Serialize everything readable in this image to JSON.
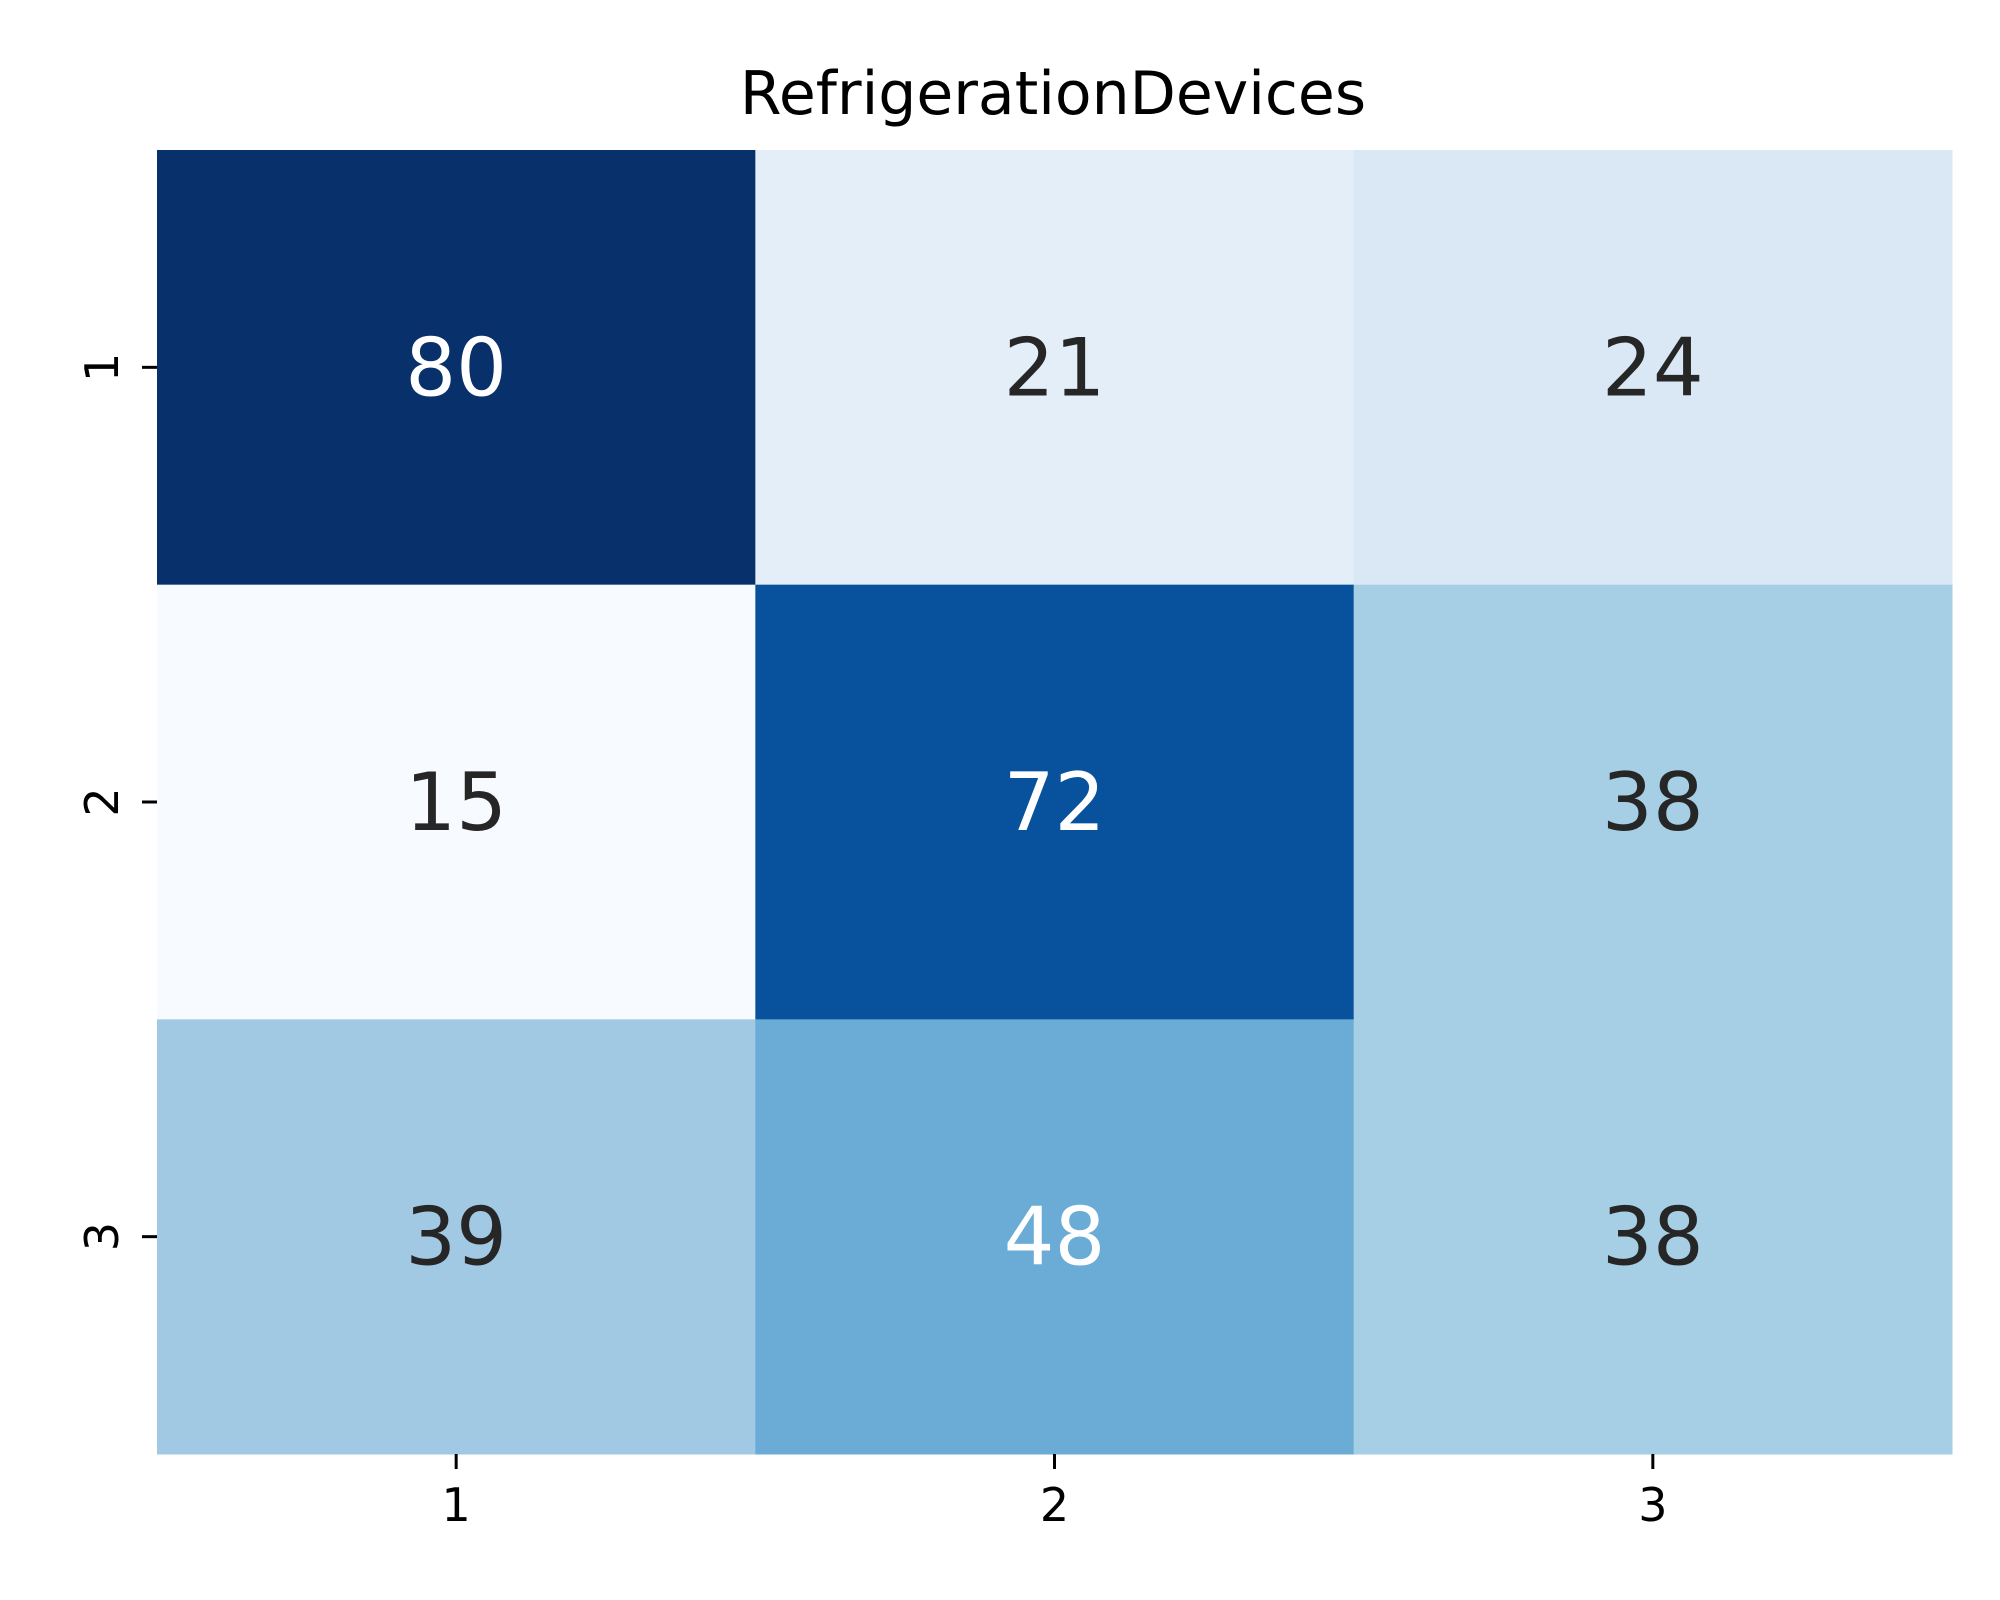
{
  "chart_data": {
    "type": "heatmap",
    "title": "RefrigerationDevices",
    "xlabel": "",
    "ylabel": "",
    "x_categories": [
      "1",
      "2",
      "3"
    ],
    "y_categories": [
      "1",
      "2",
      "3"
    ],
    "values": [
      [
        80,
        21,
        24
      ],
      [
        15,
        72,
        38
      ],
      [
        39,
        48,
        38
      ]
    ],
    "colormap": "Blues",
    "vmin": 15,
    "vmax": 80,
    "colorbar": false,
    "grid": false,
    "cell_colors": [
      [
        "#08306b",
        "#e3eef9",
        "#dae8f6"
      ],
      [
        "#f7fbff",
        "#08519c",
        "#a6cee4"
      ],
      [
        "#a1c9e3",
        "#6aacd6",
        "#a6cee4"
      ]
    ],
    "label_colors": [
      [
        "#ffffff",
        "#262626",
        "#262626"
      ],
      [
        "#262626",
        "#ffffff",
        "#262626"
      ],
      [
        "#262626",
        "#ffffff",
        "#262626"
      ]
    ]
  }
}
